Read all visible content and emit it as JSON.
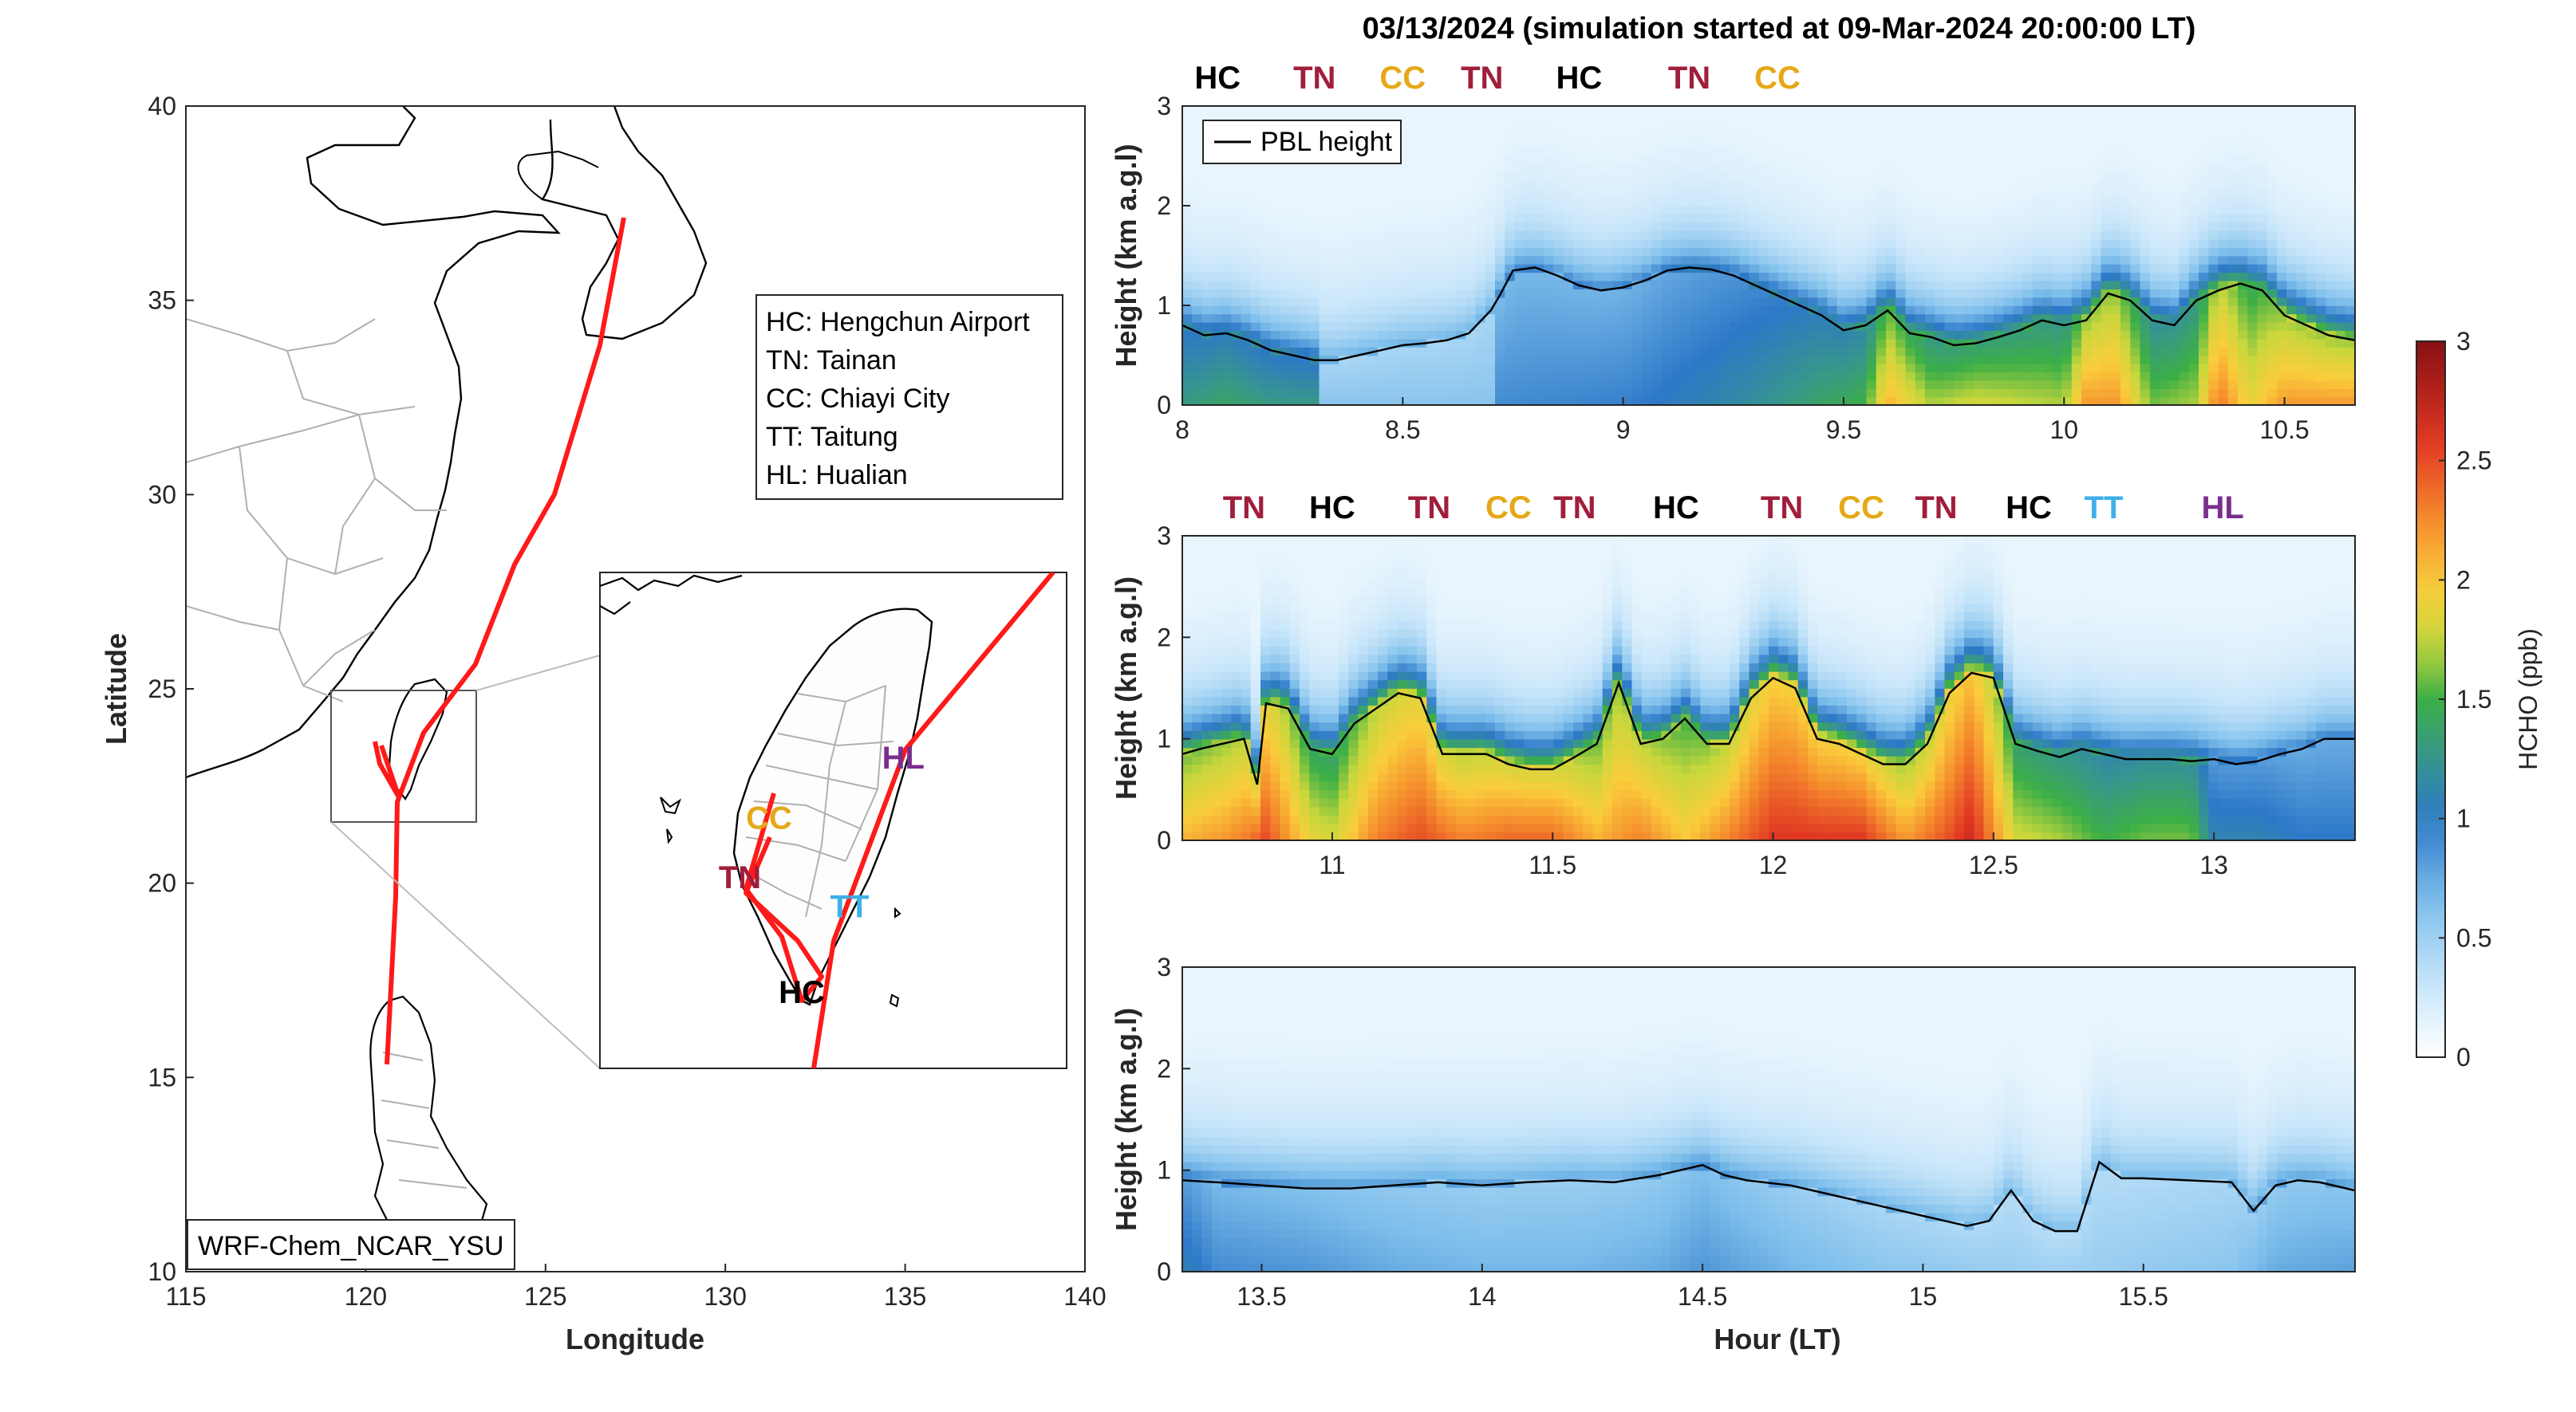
{
  "colors": {
    "track": "#ff1a1a",
    "pbl_line": "#000000",
    "site_HC": "#000000",
    "site_TN": "#a01e3c",
    "site_CC": "#e6a817",
    "site_TT": "#3fb0e8",
    "site_HL": "#7a2e8e",
    "coast": "#000000",
    "boundary": "#b0b0b0"
  },
  "map": {
    "xlabel": "Longitude",
    "ylabel": "Latitude",
    "xlim": [
      115,
      140
    ],
    "ylim": [
      10,
      40
    ],
    "xticks": [
      "115",
      "120",
      "125",
      "130",
      "135",
      "140"
    ],
    "yticks": [
      "10",
      "15",
      "20",
      "25",
      "30",
      "35",
      "40"
    ],
    "model_label": "WRF-Chem_NCAR_YSU",
    "legend": [
      "HC: Hengchun Airport",
      "TN: Tainan",
      "CC: Chiayi City",
      "TT: Taitung",
      "HL: Hualian"
    ],
    "inset_extent": {
      "lon": [
        119,
        123
      ],
      "lat": [
        21.5,
        25.6
      ]
    },
    "inset_sites": [
      {
        "code": "CC",
        "lon": 120.45,
        "lat": 23.48
      },
      {
        "code": "HL",
        "lon": 121.6,
        "lat": 23.98
      },
      {
        "code": "TN",
        "lon": 120.2,
        "lat": 22.99
      },
      {
        "code": "TT",
        "lon": 121.14,
        "lat": 22.75
      },
      {
        "code": "HC",
        "lon": 120.73,
        "lat": 22.04
      }
    ]
  },
  "title": "03/13/2024 (simulation started at 09-Mar-2024 20:00:00 LT)",
  "chart_data": {
    "type": "heatmap",
    "xlabel": "Hour (LT)",
    "ylabel": "Height (km a.g.l)",
    "colorbar": {
      "label": "HCHO (ppb)",
      "range": [
        0,
        3
      ],
      "ticks": [
        "0",
        "0.5",
        "1",
        "1.5",
        "2",
        "2.5",
        "3"
      ]
    },
    "legend": "PBL height",
    "panels": [
      {
        "xlim": [
          8,
          10.66
        ],
        "ylim": [
          0,
          3
        ],
        "xticks": [
          "8",
          "8.5",
          "9",
          "9.5",
          "10",
          "10.5"
        ],
        "yticks": [
          "0",
          "1",
          "2",
          "3"
        ],
        "sites": [
          {
            "code": "HC",
            "x": 8.08
          },
          {
            "code": "TN",
            "x": 8.3
          },
          {
            "code": "CC",
            "x": 8.5
          },
          {
            "code": "TN",
            "x": 8.68
          },
          {
            "code": "HC",
            "x": 8.9
          },
          {
            "code": "TN",
            "x": 9.15
          },
          {
            "code": "CC",
            "x": 9.35
          }
        ],
        "pbl": {
          "x": [
            8.0,
            8.05,
            8.1,
            8.15,
            8.2,
            8.25,
            8.3,
            8.35,
            8.4,
            8.45,
            8.5,
            8.55,
            8.6,
            8.65,
            8.7,
            8.72,
            8.75,
            8.8,
            8.85,
            8.9,
            8.95,
            9.0,
            9.05,
            9.1,
            9.15,
            9.2,
            9.25,
            9.3,
            9.35,
            9.4,
            9.45,
            9.5,
            9.55,
            9.6,
            9.65,
            9.7,
            9.75,
            9.8,
            9.85,
            9.9,
            9.95,
            10.0,
            10.05,
            10.1,
            10.15,
            10.2,
            10.25,
            10.3,
            10.35,
            10.4,
            10.45,
            10.5,
            10.55,
            10.6,
            10.66
          ],
          "y": [
            0.8,
            0.7,
            0.72,
            0.65,
            0.55,
            0.5,
            0.45,
            0.45,
            0.5,
            0.55,
            0.6,
            0.62,
            0.65,
            0.72,
            0.95,
            1.1,
            1.35,
            1.38,
            1.3,
            1.2,
            1.15,
            1.18,
            1.25,
            1.35,
            1.38,
            1.36,
            1.3,
            1.2,
            1.1,
            1.0,
            0.9,
            0.75,
            0.8,
            0.95,
            0.72,
            0.68,
            0.6,
            0.62,
            0.68,
            0.75,
            0.85,
            0.8,
            0.85,
            1.12,
            1.05,
            0.85,
            0.8,
            1.05,
            1.15,
            1.22,
            1.15,
            0.9,
            0.8,
            0.7,
            0.65
          ]
        },
        "surface": {
          "x": [
            8.0,
            8.1,
            8.2,
            8.3,
            8.32,
            8.5,
            8.7,
            8.72,
            9.0,
            9.2,
            9.3,
            9.45,
            9.55,
            9.6,
            9.7,
            9.8,
            9.9,
            10.0,
            10.05,
            10.12,
            10.2,
            10.3,
            10.35,
            10.42,
            10.5,
            10.66
          ],
          "v": [
            1.3,
            1.4,
            1.3,
            1.3,
            0.6,
            0.6,
            0.6,
            0.9,
            0.95,
            1.1,
            1.2,
            1.4,
            1.5,
            2.1,
            1.7,
            1.8,
            1.75,
            1.7,
            2.2,
            2.2,
            1.6,
            1.7,
            2.35,
            1.9,
            2.2,
            2.2
          ]
        }
      },
      {
        "xlim": [
          10.66,
          13.32
        ],
        "ylim": [
          0,
          3
        ],
        "xticks": [
          "11",
          "11.5",
          "12",
          "12.5",
          "13"
        ],
        "yticks": [
          "0",
          "1",
          "2",
          "3"
        ],
        "sites": [
          {
            "code": "TN",
            "x": 10.8
          },
          {
            "code": "HC",
            "x": 11.0
          },
          {
            "code": "TN",
            "x": 11.22
          },
          {
            "code": "CC",
            "x": 11.4
          },
          {
            "code": "TN",
            "x": 11.55
          },
          {
            "code": "HC",
            "x": 11.78
          },
          {
            "code": "TN",
            "x": 12.02
          },
          {
            "code": "CC",
            "x": 12.2
          },
          {
            "code": "TN",
            "x": 12.37
          },
          {
            "code": "HC",
            "x": 12.58
          },
          {
            "code": "TT",
            "x": 12.75
          },
          {
            "code": "HL",
            "x": 13.02
          }
        ],
        "pbl": {
          "x": [
            10.66,
            10.7,
            10.75,
            10.8,
            10.83,
            10.85,
            10.9,
            10.95,
            11.0,
            11.05,
            11.1,
            11.15,
            11.2,
            11.25,
            11.3,
            11.35,
            11.4,
            11.45,
            11.5,
            11.55,
            11.6,
            11.65,
            11.7,
            11.75,
            11.8,
            11.85,
            11.9,
            11.95,
            12.0,
            12.05,
            12.1,
            12.15,
            12.2,
            12.25,
            12.3,
            12.35,
            12.4,
            12.45,
            12.5,
            12.55,
            12.6,
            12.65,
            12.7,
            12.75,
            12.8,
            12.85,
            12.9,
            12.95,
            13.0,
            13.05,
            13.1,
            13.15,
            13.2,
            13.25,
            13.32
          ],
          "y": [
            0.85,
            0.9,
            0.95,
            1.0,
            0.55,
            1.35,
            1.3,
            0.9,
            0.85,
            1.15,
            1.3,
            1.45,
            1.4,
            0.85,
            0.85,
            0.85,
            0.75,
            0.7,
            0.7,
            0.82,
            0.95,
            1.55,
            0.95,
            1.0,
            1.2,
            0.95,
            0.95,
            1.4,
            1.6,
            1.5,
            1.0,
            0.95,
            0.85,
            0.75,
            0.75,
            0.95,
            1.45,
            1.65,
            1.6,
            0.95,
            0.88,
            0.82,
            0.9,
            0.85,
            0.8,
            0.8,
            0.8,
            0.78,
            0.8,
            0.75,
            0.78,
            0.85,
            0.9,
            1.0,
            1.0
          ]
        },
        "surface": {
          "x": [
            10.66,
            10.75,
            10.8,
            10.85,
            10.95,
            11.0,
            11.1,
            11.2,
            11.3,
            11.4,
            11.5,
            11.6,
            11.7,
            11.8,
            11.9,
            12.0,
            12.1,
            12.2,
            12.3,
            12.4,
            12.45,
            12.55,
            12.65,
            12.75,
            12.85,
            12.95,
            13.0,
            13.1,
            13.2,
            13.32
          ],
          "v": [
            2.1,
            2.2,
            2.3,
            2.5,
            1.9,
            1.8,
            2.3,
            2.5,
            2.3,
            2.4,
            2.4,
            2.1,
            2.3,
            2.0,
            2.3,
            2.6,
            2.6,
            2.6,
            2.2,
            2.5,
            2.7,
            1.8,
            1.7,
            1.5,
            1.6,
            1.6,
            1.1,
            1.1,
            1.0,
            1.0
          ]
        }
      },
      {
        "xlim": [
          13.32,
          15.98
        ],
        "ylim": [
          0,
          3
        ],
        "xticks": [
          "13.5",
          "14",
          "14.5",
          "15",
          "15.5"
        ],
        "yticks": [
          "0",
          "1",
          "2",
          "3"
        ],
        "sites": [],
        "pbl": {
          "x": [
            13.32,
            13.4,
            13.5,
            13.6,
            13.7,
            13.8,
            13.9,
            14.0,
            14.1,
            14.2,
            14.3,
            14.4,
            14.5,
            14.55,
            14.6,
            14.7,
            14.8,
            14.9,
            15.0,
            15.05,
            15.1,
            15.15,
            15.2,
            15.25,
            15.3,
            15.35,
            15.4,
            15.45,
            15.5,
            15.6,
            15.7,
            15.75,
            15.8,
            15.85,
            15.9,
            15.98
          ],
          "y": [
            0.9,
            0.88,
            0.85,
            0.82,
            0.82,
            0.85,
            0.88,
            0.85,
            0.88,
            0.9,
            0.88,
            0.95,
            1.05,
            0.95,
            0.9,
            0.85,
            0.75,
            0.65,
            0.55,
            0.5,
            0.45,
            0.5,
            0.8,
            0.5,
            0.4,
            0.4,
            1.08,
            0.92,
            0.92,
            0.9,
            0.88,
            0.6,
            0.85,
            0.9,
            0.88,
            0.8
          ]
        },
        "surface": {
          "x": [
            13.32,
            13.4,
            13.6,
            13.8,
            14.0,
            14.2,
            14.4,
            14.5,
            14.7,
            14.9,
            15.1,
            15.3,
            15.5,
            15.7,
            15.8,
            15.98
          ],
          "v": [
            1.1,
            0.9,
            0.85,
            0.75,
            0.7,
            0.7,
            0.75,
            0.85,
            0.7,
            0.6,
            0.55,
            0.5,
            0.55,
            0.6,
            0.75,
            0.8
          ]
        }
      }
    ]
  }
}
